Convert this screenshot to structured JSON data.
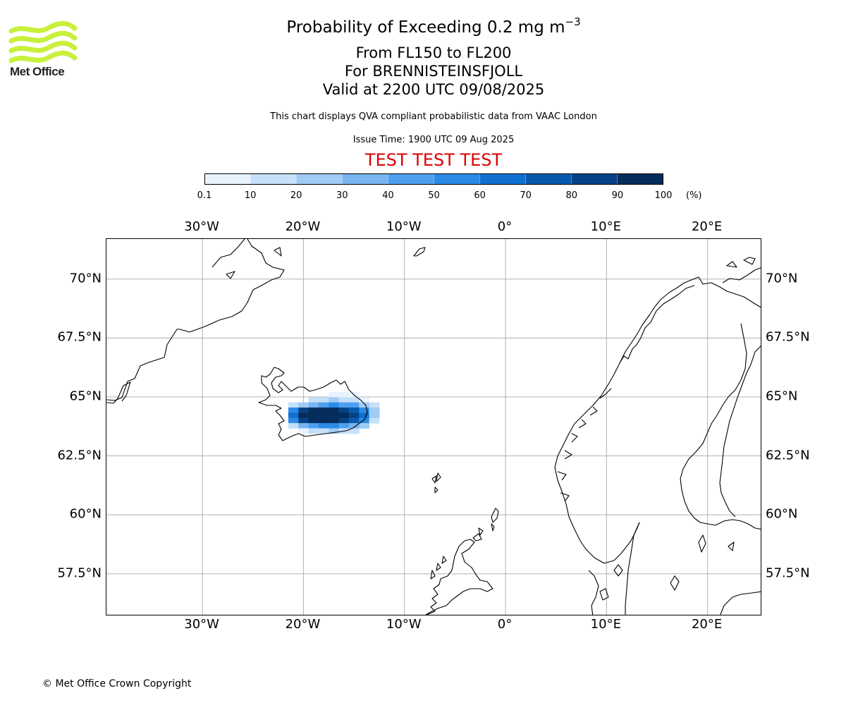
{
  "brand": {
    "logo_text": "Met Office",
    "logo_color": "#c8f03c"
  },
  "header": {
    "title_main": "Probability of Exceeding 0.2 mg m",
    "title_exponent": "−3",
    "level_range": "From FL150 to FL200",
    "volcano": "For BRENNISTEINSFJOLL",
    "valid_time": "Valid at 2200 UTC 09/08/2025",
    "description": "This chart displays QVA compliant probabilistic data from VAAC London",
    "issue_time": "Issue Time: 1900 UTC 09 Aug 2025",
    "test_banner": "TEST TEST TEST",
    "test_banner_color": "#dd0000"
  },
  "colorbar": {
    "ticks": [
      "0.1",
      "10",
      "20",
      "30",
      "40",
      "50",
      "60",
      "70",
      "80",
      "90",
      "100"
    ],
    "unit": "(%)",
    "colors": [
      "#e9f3fd",
      "#c6e0f9",
      "#a0cbf5",
      "#78b5f1",
      "#4ea0ee",
      "#2a8ae6",
      "#0f70d0",
      "#0859ad",
      "#064386",
      "#042d5c"
    ]
  },
  "map": {
    "extent": {
      "lon_min": -39.5,
      "lon_max": 25.4,
      "lat_min": 55.7,
      "lat_max": 71.7
    },
    "lon_labels": [
      {
        "lon": -30,
        "label": "30°W"
      },
      {
        "lon": -20,
        "label": "20°W"
      },
      {
        "lon": -10,
        "label": "10°W"
      },
      {
        "lon": 0,
        "label": "0°"
      },
      {
        "lon": 10,
        "label": "10°E"
      },
      {
        "lon": 20,
        "label": "20°E"
      }
    ],
    "lat_labels": [
      {
        "lat": 70,
        "label": "70°N"
      },
      {
        "lat": 67.5,
        "label": "67.5°N"
      },
      {
        "lat": 65,
        "label": "65°N"
      },
      {
        "lat": 62.5,
        "label": "62.5°N"
      },
      {
        "lat": 60,
        "label": "60°N"
      },
      {
        "lat": 57.5,
        "label": "57.5°N"
      }
    ],
    "grid_color": "#b0b0b0",
    "coastline_color": "#000000",
    "probability_cells": [
      {
        "lon": -17.0,
        "lat": 65.1,
        "band": 0
      },
      {
        "lon": -16.0,
        "lat": 65.1,
        "band": 0
      },
      {
        "lon": -15.0,
        "lat": 65.1,
        "band": 0
      },
      {
        "lon": -19.0,
        "lat": 64.88,
        "band": 1
      },
      {
        "lon": -18.0,
        "lat": 64.88,
        "band": 1
      },
      {
        "lon": -17.0,
        "lat": 64.88,
        "band": 2
      },
      {
        "lon": -16.0,
        "lat": 64.88,
        "band": 1
      },
      {
        "lon": -15.0,
        "lat": 64.88,
        "band": 1
      },
      {
        "lon": -14.0,
        "lat": 64.88,
        "band": 0
      },
      {
        "lon": -21.0,
        "lat": 64.66,
        "band": 1
      },
      {
        "lon": -20.0,
        "lat": 64.66,
        "band": 2
      },
      {
        "lon": -19.0,
        "lat": 64.66,
        "band": 3
      },
      {
        "lon": -18.0,
        "lat": 64.66,
        "band": 4
      },
      {
        "lon": -17.0,
        "lat": 64.66,
        "band": 5
      },
      {
        "lon": -16.0,
        "lat": 64.66,
        "band": 4
      },
      {
        "lon": -15.0,
        "lat": 64.66,
        "band": 4
      },
      {
        "lon": -14.0,
        "lat": 64.66,
        "band": 2
      },
      {
        "lon": -13.0,
        "lat": 64.66,
        "band": 1
      },
      {
        "lon": -21.0,
        "lat": 64.44,
        "band": 5
      },
      {
        "lon": -20.0,
        "lat": 64.44,
        "band": 8
      },
      {
        "lon": -19.0,
        "lat": 64.44,
        "band": 9
      },
      {
        "lon": -18.0,
        "lat": 64.44,
        "band": 9
      },
      {
        "lon": -17.0,
        "lat": 64.44,
        "band": 9
      },
      {
        "lon": -16.0,
        "lat": 64.44,
        "band": 8
      },
      {
        "lon": -15.0,
        "lat": 64.44,
        "band": 7
      },
      {
        "lon": -14.0,
        "lat": 64.44,
        "band": 5
      },
      {
        "lon": -13.0,
        "lat": 64.44,
        "band": 2
      },
      {
        "lon": -21.0,
        "lat": 64.22,
        "band": 6
      },
      {
        "lon": -20.0,
        "lat": 64.22,
        "band": 9
      },
      {
        "lon": -19.0,
        "lat": 64.22,
        "band": 9
      },
      {
        "lon": -18.0,
        "lat": 64.22,
        "band": 9
      },
      {
        "lon": -17.0,
        "lat": 64.22,
        "band": 9
      },
      {
        "lon": -16.0,
        "lat": 64.22,
        "band": 9
      },
      {
        "lon": -15.0,
        "lat": 64.22,
        "band": 8
      },
      {
        "lon": -14.0,
        "lat": 64.22,
        "band": 6
      },
      {
        "lon": -13.0,
        "lat": 64.22,
        "band": 2
      },
      {
        "lon": -21.0,
        "lat": 64.0,
        "band": 5
      },
      {
        "lon": -20.0,
        "lat": 64.0,
        "band": 8
      },
      {
        "lon": -19.0,
        "lat": 64.0,
        "band": 9
      },
      {
        "lon": -18.0,
        "lat": 64.0,
        "band": 9
      },
      {
        "lon": -17.0,
        "lat": 64.0,
        "band": 9
      },
      {
        "lon": -16.0,
        "lat": 64.0,
        "band": 8
      },
      {
        "lon": -15.0,
        "lat": 64.0,
        "band": 7
      },
      {
        "lon": -14.0,
        "lat": 64.0,
        "band": 5
      },
      {
        "lon": -13.0,
        "lat": 64.0,
        "band": 1
      },
      {
        "lon": -21.0,
        "lat": 63.78,
        "band": 1
      },
      {
        "lon": -20.0,
        "lat": 63.78,
        "band": 3
      },
      {
        "lon": -19.0,
        "lat": 63.78,
        "band": 4
      },
      {
        "lon": -18.0,
        "lat": 63.78,
        "band": 5
      },
      {
        "lon": -17.0,
        "lat": 63.78,
        "band": 5
      },
      {
        "lon": -16.0,
        "lat": 63.78,
        "band": 4
      },
      {
        "lon": -15.0,
        "lat": 63.78,
        "band": 3
      },
      {
        "lon": -14.0,
        "lat": 63.78,
        "band": 2
      },
      {
        "lon": -20.0,
        "lat": 63.56,
        "band": 0
      },
      {
        "lon": -19.0,
        "lat": 63.56,
        "band": 1
      },
      {
        "lon": -18.0,
        "lat": 63.56,
        "band": 1
      },
      {
        "lon": -17.0,
        "lat": 63.56,
        "band": 2
      },
      {
        "lon": -16.0,
        "lat": 63.56,
        "band": 1
      },
      {
        "lon": -15.0,
        "lat": 63.56,
        "band": 1
      }
    ]
  },
  "footer": {
    "copyright": "© Met Office Crown Copyright"
  }
}
